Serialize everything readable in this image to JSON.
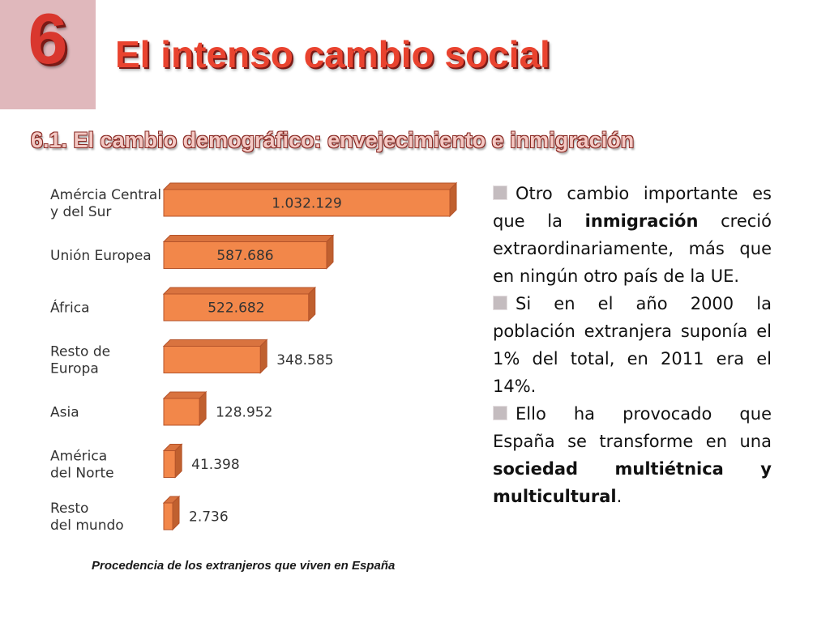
{
  "header": {
    "number": "6",
    "title": "El intenso cambio social",
    "subtitle": "6.1. El cambio demográfico: envejecimiento e inmigración"
  },
  "chart_data": {
    "type": "bar",
    "orientation": "horizontal",
    "categories": [
      [
        "Amércia Central",
        "y del Sur"
      ],
      [
        "Unión Europea"
      ],
      [
        "África"
      ],
      [
        "Resto de",
        "Europa"
      ],
      [
        "Asia"
      ],
      [
        "América",
        "del Norte"
      ],
      [
        "Resto",
        "del mundo"
      ]
    ],
    "values": [
      1032129,
      587686,
      522682,
      348585,
      128952,
      41398,
      2736
    ],
    "value_labels": [
      "1.032.129",
      "587.686",
      "522.682",
      "348.585",
      "128.952",
      "41.398",
      "2.736"
    ],
    "caption": "Procedencia de los extranjeros que viven en España",
    "bar_color": "#f2874a",
    "bar_edge_color": "#b5532a"
  },
  "text": {
    "p1_a": "Otro cambio importante es que la ",
    "p1_b": "inmigración",
    "p1_c": " creció extraordinariamente, más que en ningún otro país de la UE.",
    "p2": "Si en el año 2000 la población extranjera suponía el 1% del total, en 2011 era el 14%.",
    "p3_a": "Ello ha provocado que España se transforme en una ",
    "p3_b": "sociedad multiétnica y multicultural",
    "p3_c": "."
  },
  "colors": {
    "accent_red": "#e9432f",
    "number_box": "#e0b8bc"
  }
}
